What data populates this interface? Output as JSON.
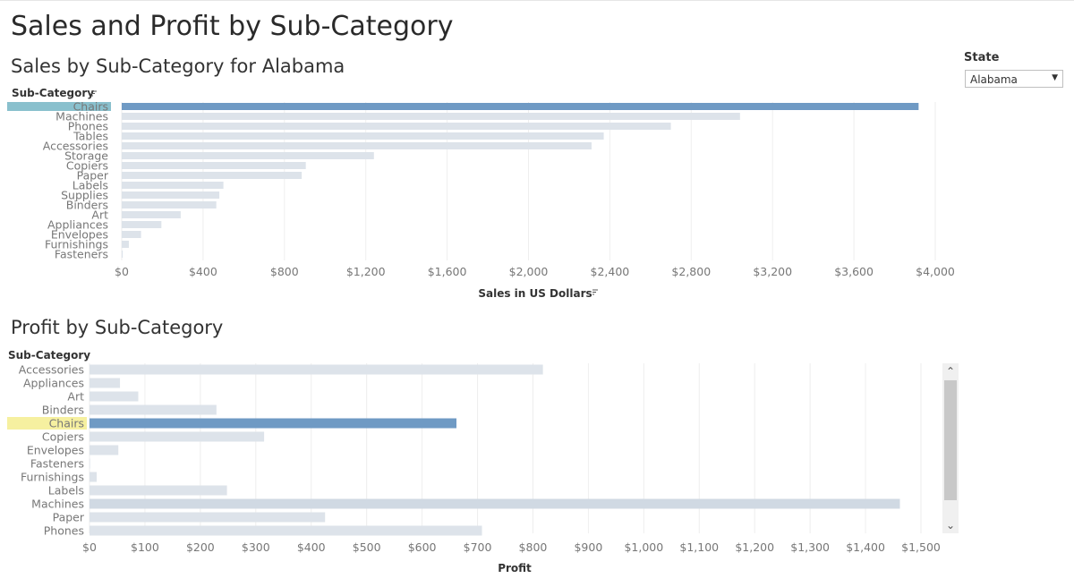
{
  "dashboard": {
    "title": "Sales and Profit by Sub-Category"
  },
  "filter": {
    "label": "State",
    "value": "Alabama",
    "arrow_icon": "dropdown-arrow-icon"
  },
  "colors": {
    "highlight_bar": "#6f9ac4",
    "bar": "#dde3ea",
    "machines_profit_bar": "#d0d9e3",
    "sales_highlight_label": "#89c0cd",
    "profit_highlight_label": "#f6f0a0"
  },
  "chart_data": [
    {
      "type": "bar",
      "orientation": "horizontal",
      "title": "Sales by Sub-Category for Alabama",
      "row_header": "Sub-Category",
      "sort_icon": "sort-icon",
      "xlabel": "Sales in US Dollars",
      "xlim": [
        0,
        4000
      ],
      "xticks": [
        0,
        400,
        800,
        1200,
        1600,
        2000,
        2400,
        2800,
        3200,
        3600,
        4000
      ],
      "xtick_labels": [
        "$0",
        "$400",
        "$800",
        "$1,200",
        "$1,600",
        "$2,000",
        "$2,400",
        "$2,800",
        "$3,200",
        "$3,600",
        "$4,000"
      ],
      "categories": [
        "Chairs",
        "Machines",
        "Phones",
        "Tables",
        "Accessories",
        "Storage",
        "Copiers",
        "Paper",
        "Labels",
        "Supplies",
        "Binders",
        "Art",
        "Appliances",
        "Envelopes",
        "Furnishings",
        "Fasteners"
      ],
      "values": [
        3918,
        3040,
        2700,
        2370,
        2310,
        1240,
        905,
        885,
        500,
        480,
        465,
        290,
        195,
        95,
        35,
        5
      ],
      "highlighted": "Chairs",
      "grid": true
    },
    {
      "type": "bar",
      "orientation": "horizontal",
      "title": "Profit by Sub-Category",
      "row_header": "Sub-Category",
      "xlabel": "Profit",
      "xlim": [
        0,
        1500
      ],
      "xticks": [
        0,
        100,
        200,
        300,
        400,
        500,
        600,
        700,
        800,
        900,
        1000,
        1100,
        1200,
        1300,
        1400,
        1500
      ],
      "xtick_labels": [
        "$0",
        "$100",
        "$200",
        "$300",
        "$400",
        "$500",
        "$600",
        "$700",
        "$800",
        "$900",
        "$1,000",
        "$1,100",
        "$1,200",
        "$1,300",
        "$1,400",
        "$1,500"
      ],
      "categories": [
        "Accessories",
        "Appliances",
        "Art",
        "Binders",
        "Chairs",
        "Copiers",
        "Envelopes",
        "Fasteners",
        "Furnishings",
        "Labels",
        "Machines",
        "Paper",
        "Phones"
      ],
      "values": [
        818,
        55,
        88,
        229,
        662,
        315,
        52,
        1,
        13,
        248,
        1462,
        425,
        708
      ],
      "highlighted": "Chairs",
      "grid": true
    }
  ]
}
